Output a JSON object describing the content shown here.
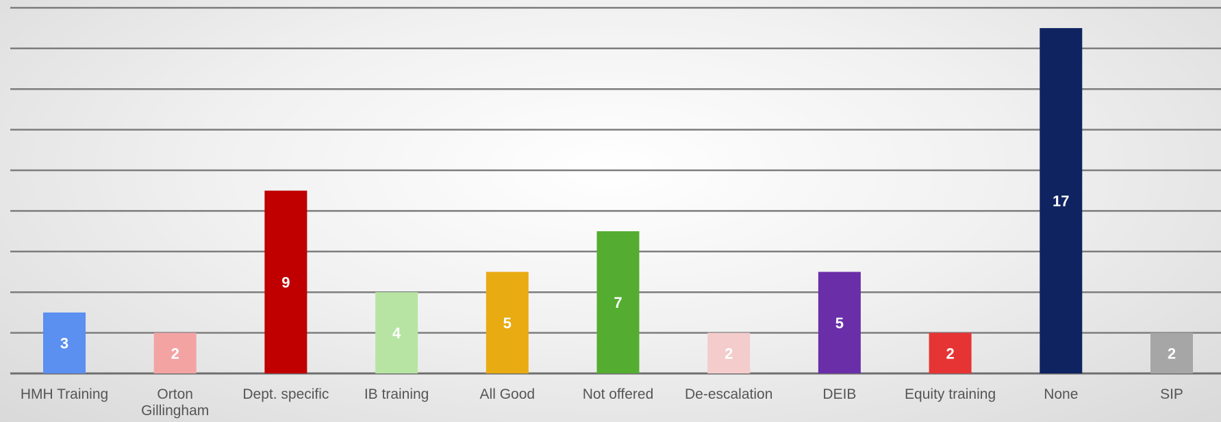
{
  "chart_data": {
    "type": "bar",
    "title": "",
    "xlabel": "",
    "ylabel": "",
    "ylim": [
      0,
      18
    ],
    "grid": true,
    "y_gridline_step": 2,
    "categories": [
      "HMH Training",
      "Orton Gillingham",
      "Dept. specific",
      "IB training",
      "All Good",
      "Not offered",
      "De-escalation",
      "DEIB",
      "Equity training",
      "None",
      "SIP"
    ],
    "category_lines": [
      [
        "HMH Training"
      ],
      [
        "Orton",
        "Gillingham"
      ],
      [
        "Dept. specific"
      ],
      [
        "IB training"
      ],
      [
        "All Good"
      ],
      [
        "Not offered"
      ],
      [
        "De-escalation"
      ],
      [
        "DEIB"
      ],
      [
        "Equity training"
      ],
      [
        "None"
      ],
      [
        "SIP"
      ]
    ],
    "values": [
      3,
      2,
      9,
      4,
      5,
      7,
      2,
      5,
      2,
      17,
      2
    ],
    "bar_colors": [
      "#5b8ff0",
      "#f4a3a3",
      "#c00000",
      "#b7e4a3",
      "#e9ab12",
      "#54ad31",
      "#f4cccc",
      "#6a2fa8",
      "#e63434",
      "#0f2360",
      "#a6a6a6"
    ],
    "data_labels": [
      "3",
      "2",
      "9",
      "4",
      "5",
      "7",
      "2",
      "5",
      "2",
      "17",
      "2"
    ],
    "legend": "none"
  }
}
